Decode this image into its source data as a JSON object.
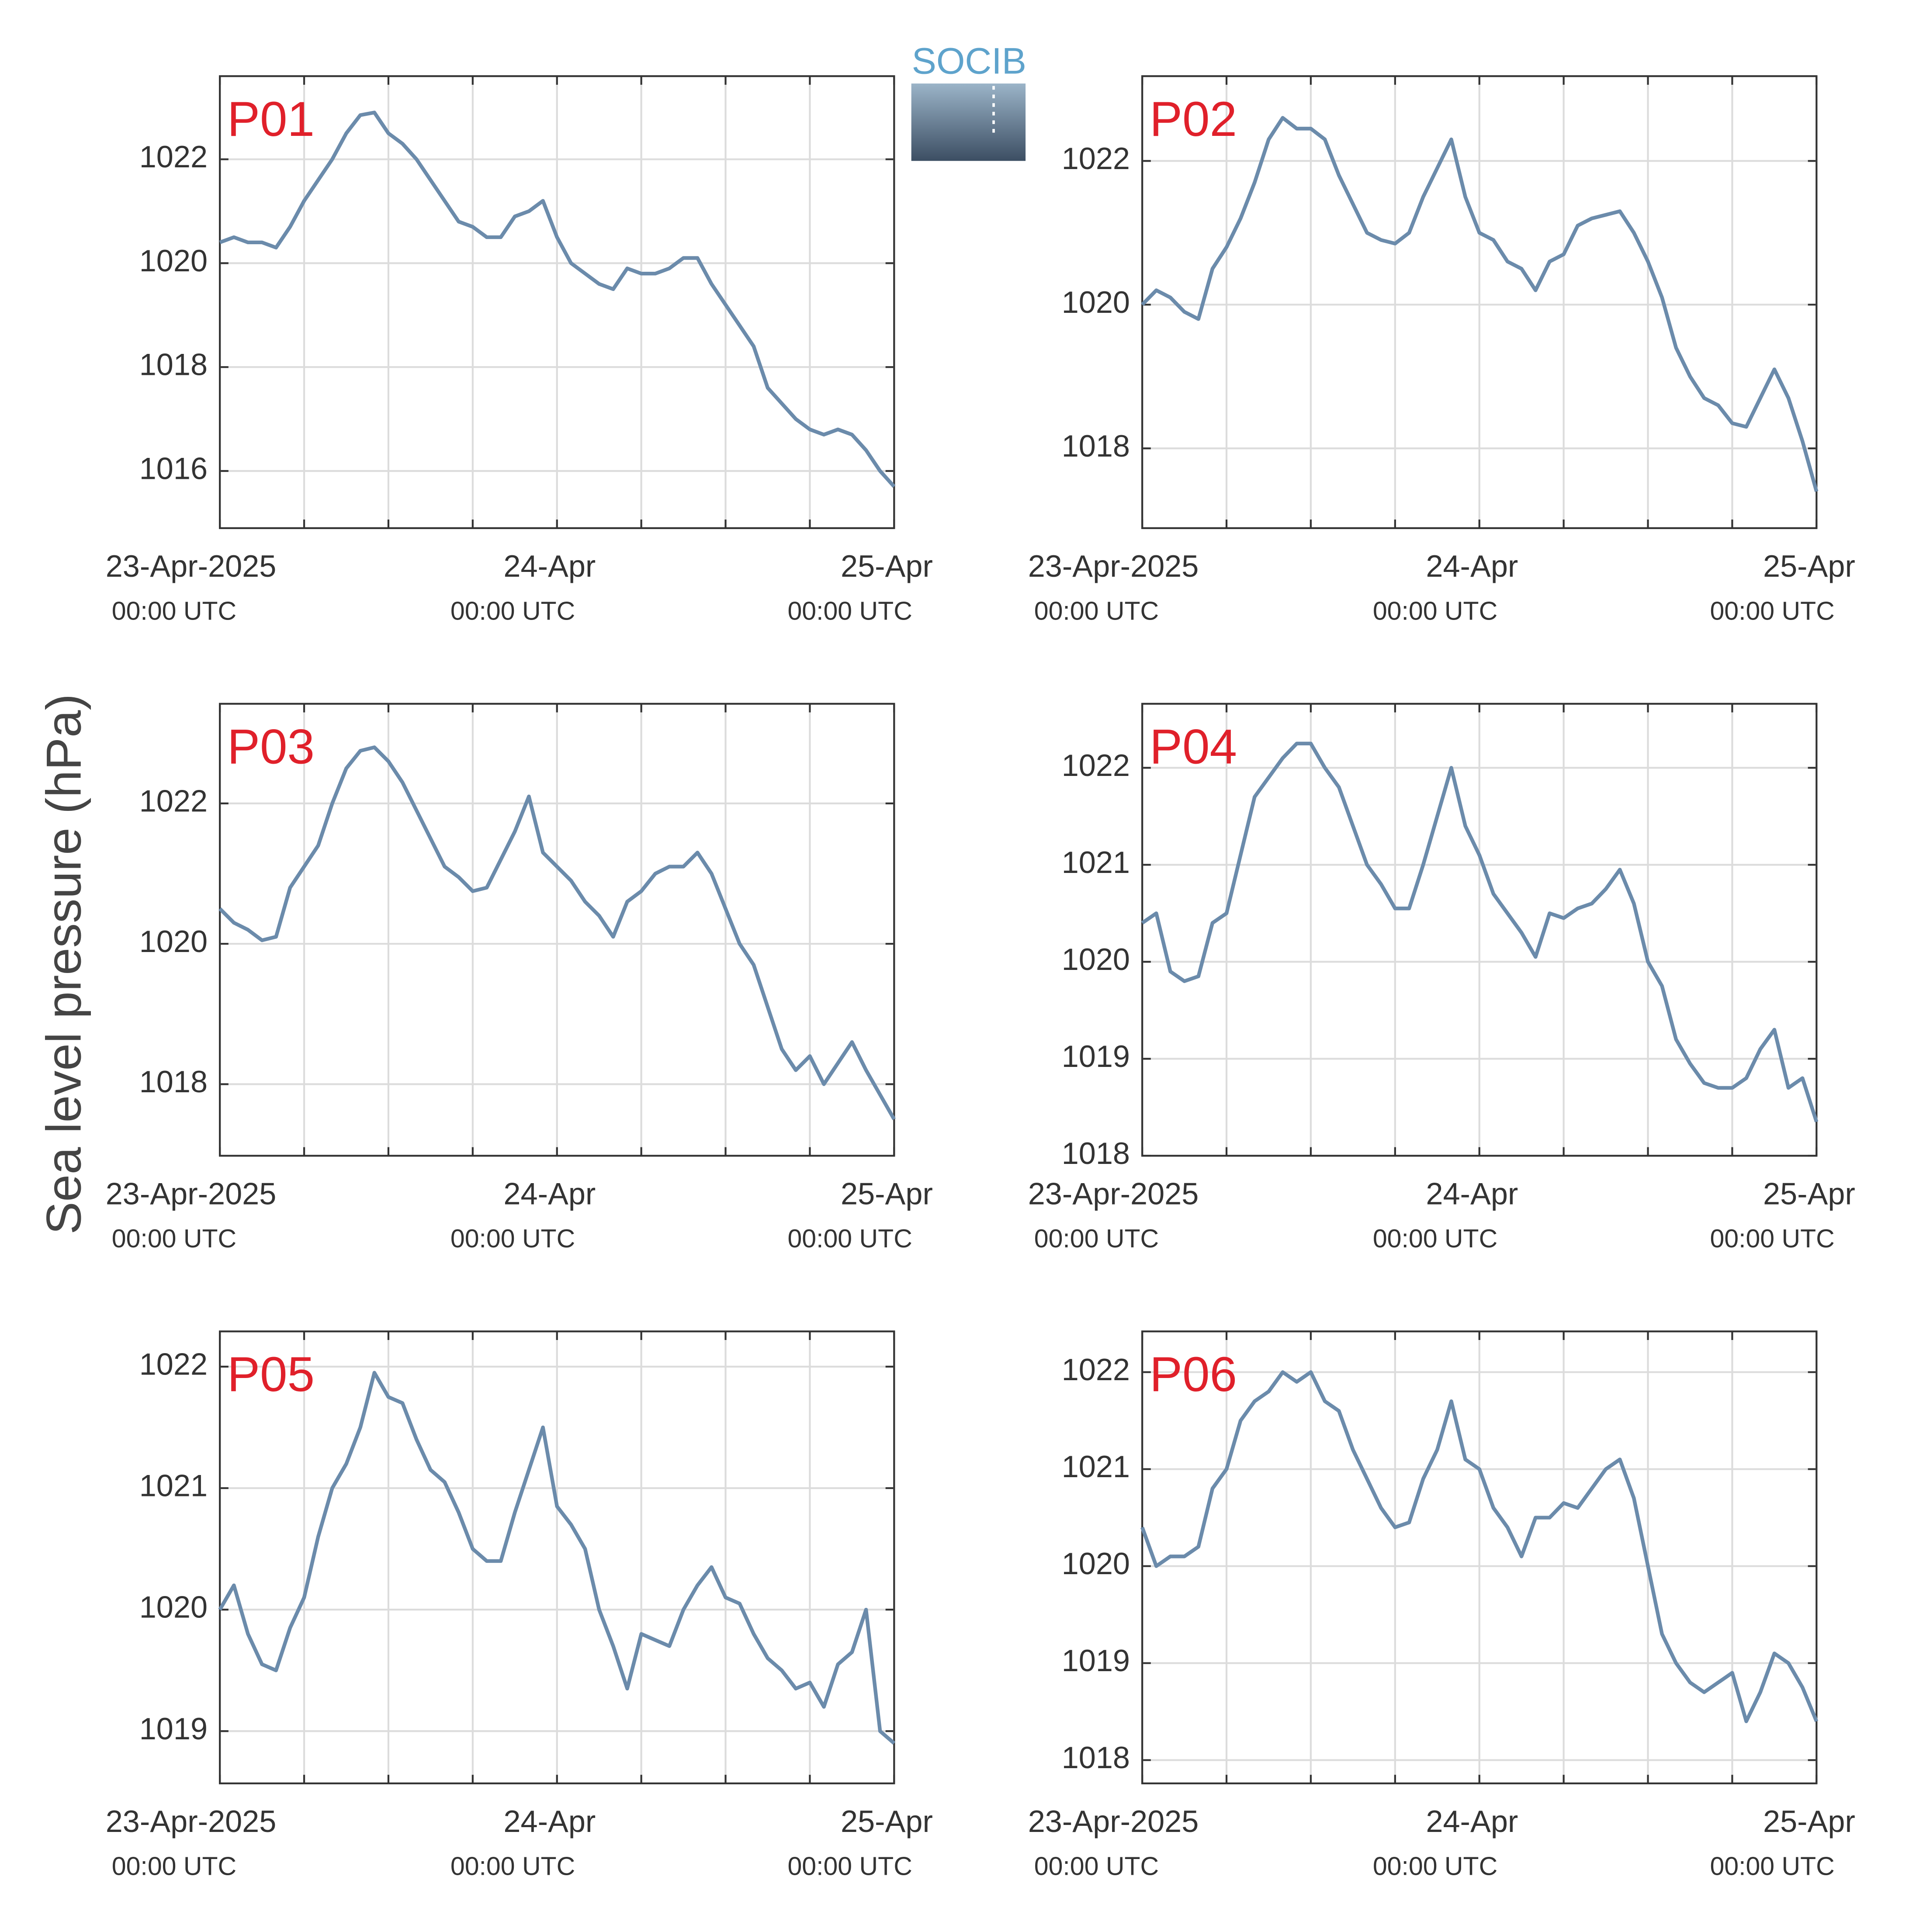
{
  "ylabel": "Sea level pressure (hPa)",
  "logo": "SOCIB",
  "chart_data": [
    {
      "type": "line",
      "title": "P01",
      "color": "#6b8bab",
      "grid": true,
      "x": [
        0,
        1,
        2,
        3,
        4,
        5,
        6,
        7,
        8,
        9,
        10,
        11,
        12,
        13,
        14,
        15,
        16,
        17,
        18,
        19,
        20,
        21,
        22,
        23,
        24,
        25,
        26,
        27,
        28,
        29,
        30,
        31,
        32,
        33,
        34,
        35,
        36,
        37,
        38,
        39,
        40,
        41,
        42,
        43,
        44,
        45,
        46,
        47,
        48
      ],
      "values": [
        1020.4,
        1020.5,
        1020.4,
        1020.4,
        1020.3,
        1020.7,
        1021.2,
        1021.6,
        1022.0,
        1022.5,
        1022.85,
        1022.9,
        1022.5,
        1022.3,
        1022.0,
        1021.6,
        1021.2,
        1020.8,
        1020.7,
        1020.5,
        1020.5,
        1020.9,
        1021.0,
        1021.2,
        1020.5,
        1020.0,
        1019.8,
        1019.6,
        1019.5,
        1019.9,
        1019.8,
        1019.8,
        1019.9,
        1020.1,
        1020.1,
        1019.6,
        1019.2,
        1018.8,
        1018.4,
        1017.6,
        1017.3,
        1017.0,
        1016.8,
        1016.7,
        1016.8,
        1016.7,
        1016.4,
        1016.0,
        1015.7
      ],
      "xlim": [
        0,
        48
      ],
      "ylim": [
        1014.9,
        1023.6
      ],
      "yticks": [
        1016,
        1018,
        1020,
        1022
      ],
      "xticks": [
        {
          "value": 0,
          "label": "23-Apr-2025",
          "sublabel": "00:00 UTC"
        },
        6,
        12,
        18,
        {
          "value": 24,
          "label": "24-Apr",
          "sublabel": "00:00 UTC"
        },
        30,
        36,
        42,
        {
          "value": 48,
          "label": "25-Apr",
          "sublabel": "00:00 UTC"
        }
      ]
    },
    {
      "type": "line",
      "title": "P02",
      "color": "#6b8bab",
      "grid": true,
      "x": [
        0,
        1,
        2,
        3,
        4,
        5,
        6,
        7,
        8,
        9,
        10,
        11,
        12,
        13,
        14,
        15,
        16,
        17,
        18,
        19,
        20,
        21,
        22,
        23,
        24,
        25,
        26,
        27,
        28,
        29,
        30,
        31,
        32,
        33,
        34,
        35,
        36,
        37,
        38,
        39,
        40,
        41,
        42,
        43,
        44,
        45,
        46,
        47,
        48
      ],
      "values": [
        1020.0,
        1020.2,
        1020.1,
        1019.9,
        1019.8,
        1020.5,
        1020.8,
        1021.2,
        1021.7,
        1022.3,
        1022.6,
        1022.45,
        1022.45,
        1022.3,
        1021.8,
        1021.4,
        1021.0,
        1020.9,
        1020.85,
        1021.0,
        1021.5,
        1021.9,
        1022.3,
        1021.5,
        1021.0,
        1020.9,
        1020.6,
        1020.5,
        1020.2,
        1020.6,
        1020.7,
        1021.1,
        1021.2,
        1021.25,
        1021.3,
        1021.0,
        1020.6,
        1020.1,
        1019.4,
        1019.0,
        1018.7,
        1018.6,
        1018.35,
        1018.3,
        1018.7,
        1019.1,
        1018.7,
        1018.1,
        1017.4
      ],
      "xlim": [
        0,
        48
      ],
      "ylim": [
        1016.89,
        1023.18
      ],
      "yticks": [
        1018,
        1020,
        1022
      ],
      "xticks": [
        {
          "value": 0,
          "label": "23-Apr-2025",
          "sublabel": "00:00 UTC"
        },
        6,
        12,
        18,
        {
          "value": 24,
          "label": "24-Apr",
          "sublabel": "00:00 UTC"
        },
        30,
        36,
        42,
        {
          "value": 48,
          "label": "25-Apr",
          "sublabel": "00:00 UTC"
        }
      ]
    },
    {
      "type": "line",
      "title": "P03",
      "color": "#6b8bab",
      "grid": true,
      "x": [
        0,
        1,
        2,
        3,
        4,
        5,
        6,
        7,
        8,
        9,
        10,
        11,
        12,
        13,
        14,
        15,
        16,
        17,
        18,
        19,
        20,
        21,
        22,
        23,
        24,
        25,
        26,
        27,
        28,
        29,
        30,
        31,
        32,
        33,
        34,
        35,
        36,
        37,
        38,
        39,
        40,
        41,
        42,
        43,
        44,
        45,
        46,
        47,
        48
      ],
      "values": [
        1020.5,
        1020.3,
        1020.2,
        1020.05,
        1020.1,
        1020.8,
        1021.1,
        1021.4,
        1022.0,
        1022.5,
        1022.75,
        1022.8,
        1022.6,
        1022.3,
        1021.9,
        1021.5,
        1021.1,
        1020.95,
        1020.75,
        1020.8,
        1021.2,
        1021.6,
        1022.1,
        1021.3,
        1021.1,
        1020.9,
        1020.6,
        1020.4,
        1020.1,
        1020.6,
        1020.75,
        1021.0,
        1021.1,
        1021.1,
        1021.3,
        1021.0,
        1020.5,
        1020.0,
        1019.7,
        1019.1,
        1018.5,
        1018.2,
        1018.4,
        1018.0,
        1018.3,
        1018.6,
        1018.2,
        1017.85,
        1017.5
      ],
      "xlim": [
        0,
        48
      ],
      "ylim": [
        1016.98,
        1023.42
      ],
      "yticks": [
        1018,
        1020,
        1022
      ],
      "xticks": [
        {
          "value": 0,
          "label": "23-Apr-2025",
          "sublabel": "00:00 UTC"
        },
        6,
        12,
        18,
        {
          "value": 24,
          "label": "24-Apr",
          "sublabel": "00:00 UTC"
        },
        30,
        36,
        42,
        {
          "value": 48,
          "label": "25-Apr",
          "sublabel": "00:00 UTC"
        }
      ]
    },
    {
      "type": "line",
      "title": "P04",
      "color": "#6b8bab",
      "grid": true,
      "x": [
        0,
        1,
        2,
        3,
        4,
        5,
        6,
        7,
        8,
        9,
        10,
        11,
        12,
        13,
        14,
        15,
        16,
        17,
        18,
        19,
        20,
        21,
        22,
        23,
        24,
        25,
        26,
        27,
        28,
        29,
        30,
        31,
        32,
        33,
        34,
        35,
        36,
        37,
        38,
        39,
        40,
        41,
        42,
        43,
        44,
        45,
        46,
        47,
        48
      ],
      "values": [
        1020.4,
        1020.5,
        1019.9,
        1019.8,
        1019.85,
        1020.4,
        1020.5,
        1021.1,
        1021.7,
        1021.9,
        1022.1,
        1022.25,
        1022.25,
        1022.0,
        1021.8,
        1021.4,
        1021.0,
        1020.8,
        1020.55,
        1020.55,
        1021.0,
        1021.5,
        1022.0,
        1021.4,
        1021.1,
        1020.7,
        1020.5,
        1020.3,
        1020.05,
        1020.5,
        1020.45,
        1020.55,
        1020.6,
        1020.75,
        1020.95,
        1020.6,
        1020.0,
        1019.75,
        1019.2,
        1018.95,
        1018.75,
        1018.7,
        1018.7,
        1018.8,
        1019.1,
        1019.3,
        1018.7,
        1018.8,
        1018.35
      ],
      "xlim": [
        0,
        48
      ],
      "ylim": [
        1018,
        1022.66
      ],
      "yticks": [
        1018,
        1019,
        1020,
        1021,
        1022
      ],
      "xticks": [
        {
          "value": 0,
          "label": "23-Apr-2025",
          "sublabel": "00:00 UTC"
        },
        6,
        12,
        18,
        {
          "value": 24,
          "label": "24-Apr",
          "sublabel": "00:00 UTC"
        },
        30,
        36,
        42,
        {
          "value": 48,
          "label": "25-Apr",
          "sublabel": "00:00 UTC"
        }
      ]
    },
    {
      "type": "line",
      "title": "P05",
      "color": "#6b8bab",
      "grid": true,
      "x": [
        0,
        1,
        2,
        3,
        4,
        5,
        6,
        7,
        8,
        9,
        10,
        11,
        12,
        13,
        14,
        15,
        16,
        17,
        18,
        19,
        20,
        21,
        22,
        23,
        24,
        25,
        26,
        27,
        28,
        29,
        30,
        31,
        32,
        33,
        34,
        35,
        36,
        37,
        38,
        39,
        40,
        41,
        42,
        43,
        44,
        45,
        46,
        47,
        48
      ],
      "values": [
        1020.0,
        1020.2,
        1019.8,
        1019.55,
        1019.5,
        1019.85,
        1020.1,
        1020.6,
        1021.0,
        1021.2,
        1021.5,
        1021.95,
        1021.75,
        1021.7,
        1021.4,
        1021.15,
        1021.05,
        1020.8,
        1020.5,
        1020.4,
        1020.4,
        1020.8,
        1021.15,
        1021.5,
        1020.85,
        1020.7,
        1020.5,
        1020.0,
        1019.7,
        1019.35,
        1019.8,
        1019.75,
        1019.7,
        1020.0,
        1020.2,
        1020.35,
        1020.1,
        1020.05,
        1019.8,
        1019.6,
        1019.5,
        1019.35,
        1019.4,
        1019.2,
        1019.55,
        1019.65,
        1020.0,
        1019.0,
        1018.9
      ],
      "xlim": [
        0,
        48
      ],
      "ylim": [
        1018.57,
        1022.29
      ],
      "yticks": [
        1019,
        1020,
        1021,
        1022
      ],
      "xticks": [
        {
          "value": 0,
          "label": "23-Apr-2025",
          "sublabel": "00:00 UTC"
        },
        6,
        12,
        18,
        {
          "value": 24,
          "label": "24-Apr",
          "sublabel": "00:00 UTC"
        },
        30,
        36,
        42,
        {
          "value": 48,
          "label": "25-Apr",
          "sublabel": "00:00 UTC"
        }
      ]
    },
    {
      "type": "line",
      "title": "P06",
      "color": "#6b8bab",
      "grid": true,
      "x": [
        0,
        1,
        2,
        3,
        4,
        5,
        6,
        7,
        8,
        9,
        10,
        11,
        12,
        13,
        14,
        15,
        16,
        17,
        18,
        19,
        20,
        21,
        22,
        23,
        24,
        25,
        26,
        27,
        28,
        29,
        30,
        31,
        32,
        33,
        34,
        35,
        36,
        37,
        38,
        39,
        40,
        41,
        42,
        43,
        44,
        45,
        46,
        47,
        48
      ],
      "values": [
        1020.4,
        1020.0,
        1020.1,
        1020.1,
        1020.2,
        1020.8,
        1021.0,
        1021.5,
        1021.7,
        1021.8,
        1022.0,
        1021.9,
        1022.0,
        1021.7,
        1021.6,
        1021.2,
        1020.9,
        1020.6,
        1020.4,
        1020.45,
        1020.9,
        1021.2,
        1021.7,
        1021.1,
        1021.0,
        1020.6,
        1020.4,
        1020.1,
        1020.5,
        1020.5,
        1020.65,
        1020.6,
        1020.8,
        1021.0,
        1021.1,
        1020.7,
        1020.0,
        1019.3,
        1019.0,
        1018.8,
        1018.7,
        1018.8,
        1018.9,
        1018.4,
        1018.7,
        1019.1,
        1019.0,
        1018.75,
        1018.4
      ],
      "xlim": [
        0,
        48
      ],
      "ylim": [
        1017.76,
        1022.42
      ],
      "yticks": [
        1018,
        1019,
        1020,
        1021,
        1022
      ],
      "xticks": [
        {
          "value": 0,
          "label": "23-Apr-2025",
          "sublabel": "00:00 UTC"
        },
        6,
        12,
        18,
        {
          "value": 24,
          "label": "24-Apr",
          "sublabel": "00:00 UTC"
        },
        30,
        36,
        42,
        {
          "value": 48,
          "label": "25-Apr",
          "sublabel": "00:00 UTC"
        }
      ]
    }
  ]
}
